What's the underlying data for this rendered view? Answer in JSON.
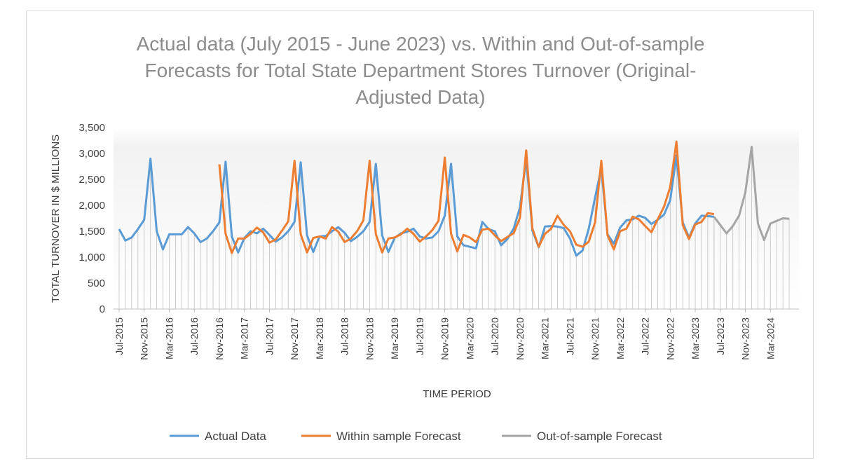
{
  "colors": {
    "actual": "#5b9bd5",
    "within": "#ed7d31",
    "outsample": "#a5a5a5",
    "grid_drop": "#bfbfbf"
  },
  "chart_data": {
    "type": "line",
    "title_lines": [
      "Actual data (July 2015 - June 2023) vs. Within and Out-of-sample",
      "Forecasts for Total State Department Stores Turnover (Original-",
      "Adjusted Data)"
    ],
    "xlabel": "TIME PERIOD",
    "ylabel": "TOTAL TURNOVER IN $ MILLIONS",
    "ylim": [
      0,
      3500
    ],
    "y_ticks": [
      "0",
      "500",
      "1,000",
      "1,500",
      "2,000",
      "2,500",
      "3,000",
      "3,500"
    ],
    "x_start": "Jul-2015",
    "x_tick_labels": [
      "Jul-2015",
      "Nov-2015",
      "Mar-2016",
      "Jul-2016",
      "Nov-2016",
      "Mar-2017",
      "Jul-2017",
      "Nov-2017",
      "Mar-2018",
      "Jul-2018",
      "Nov-2018",
      "Mar-2019",
      "Jul-2019",
      "Nov-2019",
      "Mar-2020",
      "Jul-2020",
      "Nov-2020",
      "Mar-2021",
      "Jul-2021",
      "Nov-2021",
      "Mar-2022",
      "Jul-2022",
      "Nov-2022",
      "Mar-2023",
      "Jul-2023",
      "Nov-2023",
      "Mar-2024"
    ],
    "legend_position": "bottom",
    "grid": false,
    "series": [
      {
        "name": "Actual Data",
        "start": "Jul-2015",
        "values": [
          1540,
          1320,
          1380,
          1540,
          1720,
          2900,
          1500,
          1150,
          1440,
          1440,
          1440,
          1580,
          1460,
          1290,
          1360,
          1500,
          1670,
          2840,
          1400,
          1090,
          1370,
          1500,
          1460,
          1550,
          1430,
          1300,
          1380,
          1500,
          1680,
          2830,
          1420,
          1100,
          1400,
          1410,
          1500,
          1580,
          1470,
          1310,
          1390,
          1500,
          1680,
          2800,
          1420,
          1100,
          1370,
          1460,
          1490,
          1550,
          1400,
          1360,
          1380,
          1500,
          1800,
          2800,
          1400,
          1230,
          1200,
          1170,
          1680,
          1540,
          1500,
          1230,
          1350,
          1550,
          1960,
          2900,
          1510,
          1190,
          1590,
          1600,
          1590,
          1560,
          1360,
          1030,
          1130,
          1550,
          2150,
          2720,
          1440,
          1260,
          1570,
          1710,
          1730,
          1800,
          1760,
          1640,
          1720,
          1820,
          2100,
          2960,
          1670,
          1380,
          1650,
          1800,
          1790,
          1780
        ],
        "drop_lines": true
      },
      {
        "name": "Within sample Forecast",
        "start": "Nov-2016",
        "values": [
          2790,
          1450,
          1080,
          1360,
          1360,
          1450,
          1570,
          1480,
          1280,
          1340,
          1510,
          1690,
          2860,
          1440,
          1090,
          1370,
          1400,
          1360,
          1580,
          1490,
          1290,
          1360,
          1500,
          1710,
          2860,
          1440,
          1090,
          1360,
          1380,
          1440,
          1550,
          1450,
          1300,
          1400,
          1520,
          1700,
          2920,
          1450,
          1110,
          1430,
          1380,
          1290,
          1530,
          1550,
          1420,
          1310,
          1390,
          1460,
          1760,
          3060,
          1550,
          1200,
          1450,
          1550,
          1800,
          1620,
          1500,
          1240,
          1200,
          1300,
          1670,
          2860,
          1420,
          1150,
          1500,
          1550,
          1780,
          1730,
          1600,
          1480,
          1730,
          1970,
          2350,
          3230,
          1620,
          1350,
          1630,
          1680,
          1850,
          1830
        ],
        "drop_lines": false
      },
      {
        "name": "Out-of-sample Forecast",
        "start": "Jun-2023",
        "values": [
          1780,
          1620,
          1460,
          1600,
          1800,
          2250,
          3130,
          1650,
          1330,
          1650,
          1700,
          1750,
          1740
        ],
        "drop_lines": true
      }
    ]
  }
}
